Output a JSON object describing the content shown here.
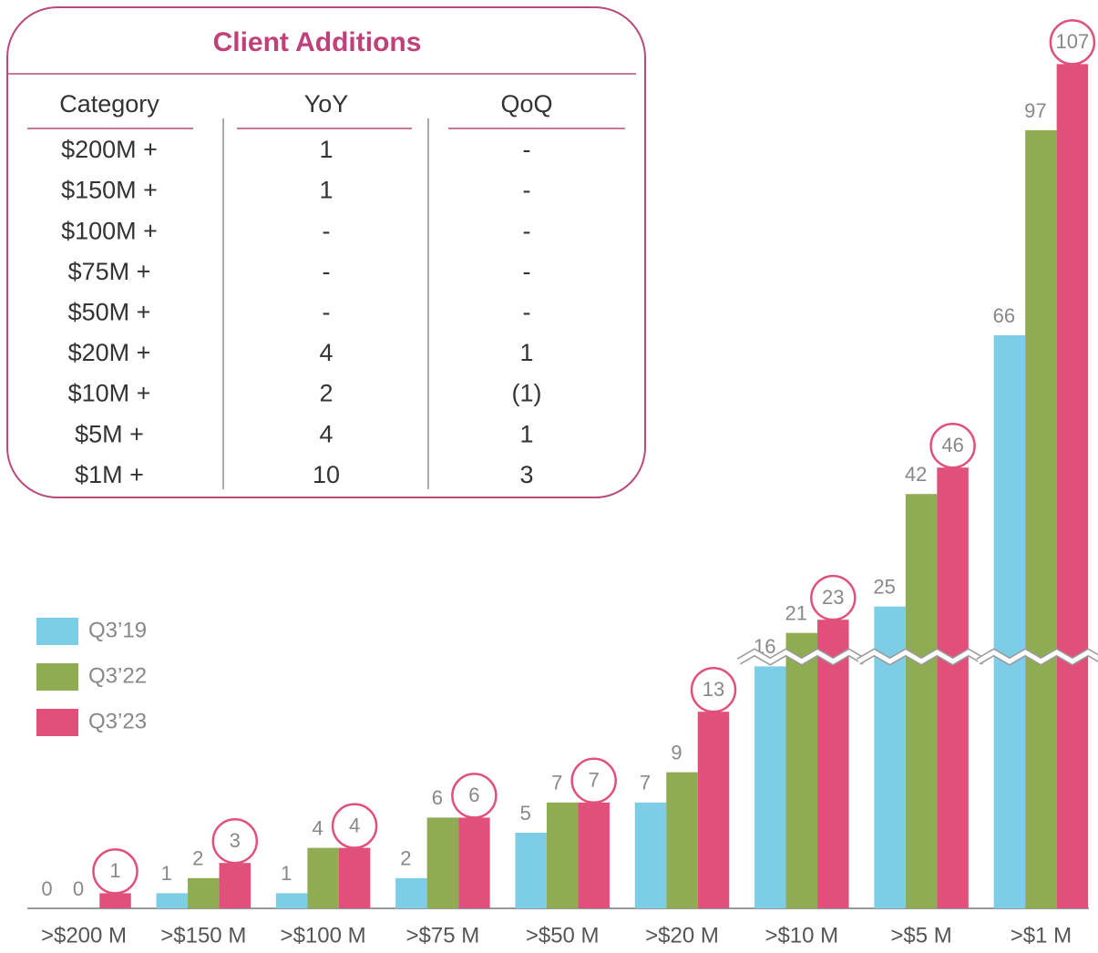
{
  "table": {
    "title": "Client Additions",
    "headers": [
      "Category",
      "YoY",
      "QoQ"
    ],
    "rows": [
      [
        "$200M +",
        "1",
        "-"
      ],
      [
        "$150M +",
        "1",
        "-"
      ],
      [
        "$100M +",
        "-",
        "-"
      ],
      [
        "$75M +",
        "-",
        "-"
      ],
      [
        "$50M +",
        "-",
        "-"
      ],
      [
        "$20M +",
        "4",
        "1"
      ],
      [
        "$10M +",
        "2",
        "(1)"
      ],
      [
        "$5M +",
        "4",
        "1"
      ],
      [
        "$1M +",
        "10",
        "3"
      ]
    ]
  },
  "chart_data": {
    "type": "bar",
    "categories": [
      ">$200 M",
      ">$150 M",
      ">$100 M",
      ">$75 M",
      ">$50 M",
      ">$20 M",
      ">$10 M",
      ">$5 M",
      ">$1 M"
    ],
    "series": [
      {
        "name": "Q3’19",
        "color": "#7ecde6",
        "values": [
          0,
          1,
          1,
          2,
          5,
          7,
          16,
          25,
          66
        ]
      },
      {
        "name": "Q3’22",
        "color": "#8fac52",
        "values": [
          0,
          2,
          4,
          6,
          7,
          9,
          21,
          42,
          97
        ]
      },
      {
        "name": "Q3’23",
        "color": "#e0507a",
        "values": [
          1,
          3,
          4,
          6,
          7,
          13,
          23,
          46,
          107
        ]
      }
    ],
    "legend": "left"
  }
}
